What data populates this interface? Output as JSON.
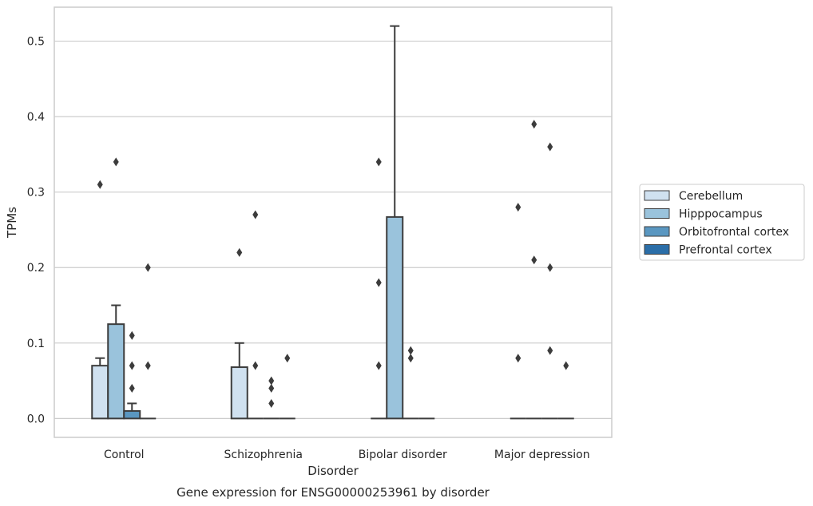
{
  "caption": "Gene expression for ENSG00000253961 by disorder",
  "chart_data": {
    "type": "bar",
    "xlabel": "Disorder",
    "ylabel": "TPMs",
    "ylim": [
      -0.025,
      0.545
    ],
    "yticks": [
      0.0,
      0.1,
      0.2,
      0.3,
      0.4,
      0.5
    ],
    "ytick_labels": [
      "0.0",
      "0.1",
      "0.2",
      "0.3",
      "0.4",
      "0.5"
    ],
    "grid": "horizontal",
    "legend_position": "right",
    "categories": [
      "Control",
      "Schizophrenia",
      "Bipolar disorder",
      "Major depression"
    ],
    "series": [
      {
        "name": "Cerebellum",
        "color": "#d0e1f0",
        "values": [
          0.07,
          0.068,
          0.0,
          0.0
        ],
        "error_upper": [
          0.08,
          0.1,
          null,
          null
        ],
        "outliers": [
          [
            0.31
          ],
          [
            0.22
          ],
          [
            0.07,
            0.18,
            0.34
          ],
          [
            0.08,
            0.28
          ]
        ]
      },
      {
        "name": "Hipppocampus",
        "color": "#9ac3dc",
        "values": [
          0.125,
          0.0,
          0.267,
          0.0
        ],
        "error_upper": [
          0.15,
          null,
          0.52,
          null
        ],
        "outliers": [
          [
            0.34
          ],
          [
            0.07,
            0.27
          ],
          [],
          [
            0.21,
            0.39
          ]
        ]
      },
      {
        "name": "Orbitofrontal cortex",
        "color": "#5a97c1",
        "values": [
          0.01,
          0.0,
          0.0,
          0.0
        ],
        "error_upper": [
          0.02,
          null,
          null,
          null
        ],
        "outliers": [
          [
            0.04,
            0.07,
            0.11
          ],
          [
            0.02,
            0.04,
            0.05
          ],
          [
            0.08,
            0.09
          ],
          [
            0.09,
            0.2,
            0.36
          ]
        ]
      },
      {
        "name": "Prefrontal cortex",
        "color": "#2b6ea8",
        "values": [
          0.0,
          0.0,
          0.0,
          0.0
        ],
        "error_upper": [
          null,
          null,
          null,
          null
        ],
        "outliers": [
          [
            0.07,
            0.2
          ],
          [
            0.08
          ],
          [],
          [
            0.07
          ]
        ]
      }
    ]
  }
}
